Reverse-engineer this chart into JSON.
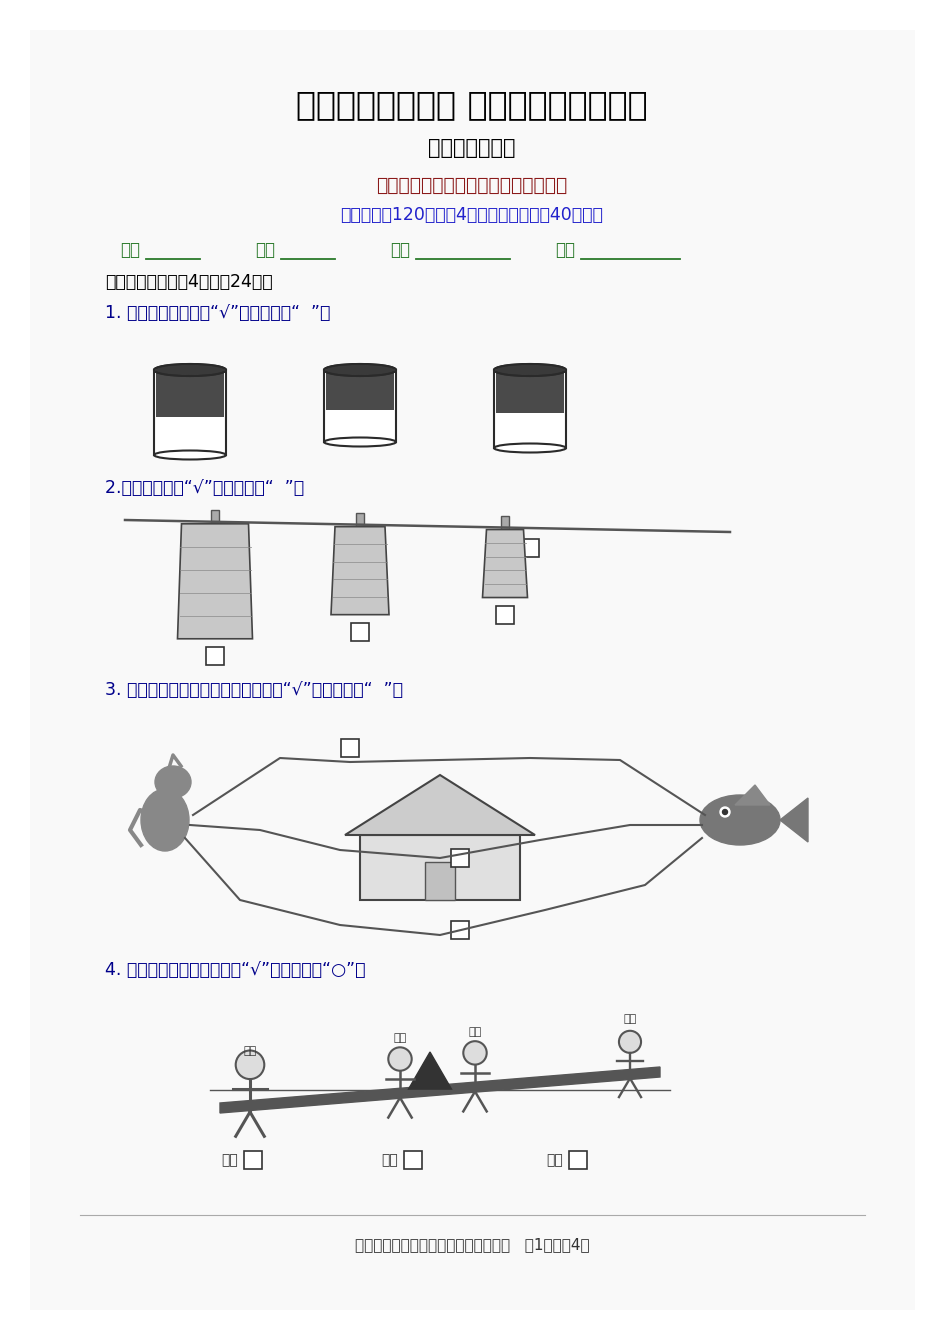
{
  "title": "《小学生数学报》 数学学习能力检测卷",
  "subtitle": "（最新修订版）",
  "line3": "苏教版一年级（上）第一～四单元使用",
  "line4": "（本卷总分120分，兲4页，建议完成时间40分钟）",
  "field_labels": [
    "班级",
    "姓名",
    "学号",
    "得分"
  ],
  "section1": "一、选择题（每题4分，全24分）",
  "q1": "1. 杯里的水最多的画“√”，最少的画“  ”。",
  "q2": "2.围巾最长的画“√”，最短的画“  ”。",
  "q3": "3. 小猫吃鱼。哪条路最近？最近的画“√”，最远的画“  ”。",
  "q4": "4. 哪个小朋友重？最重的画“√”，最轻的画“○”。",
  "footer": "苏教版一年级（上）第一～四单元使用   第1页，兲4页",
  "name_labels": [
    "小明",
    "小华",
    "小云"
  ],
  "child_names_top": [
    "小明",
    "小华",
    "小云"
  ],
  "bg_color": "#ffffff",
  "title_color": "#000000",
  "subtitle_color": "#000000",
  "line3_color": "#8B1A1A",
  "line4_color": "#2222cc",
  "field_color": "#2a7a2a",
  "section_color": "#000000",
  "q_color": "#00008B"
}
